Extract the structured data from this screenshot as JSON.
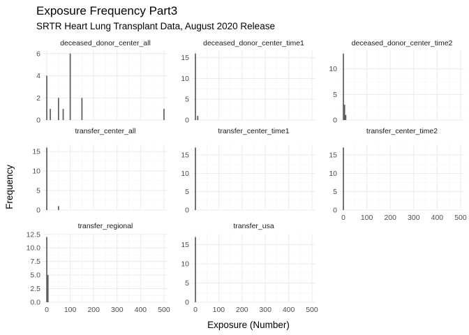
{
  "title": "Exposure Frequency Part3",
  "subtitle": "SRTR Heart Lung Transplant Data, August 2020 Release",
  "chart_data": {
    "type": "bar",
    "xlabel": "Exposure (Number)",
    "ylabel": "Frequency",
    "xlim": [
      -15,
      515
    ],
    "x_ticks": [
      0,
      100,
      200,
      300,
      400,
      500
    ],
    "bin_width": 5,
    "grid": true,
    "facets": [
      {
        "name": "deceased_donor_center_all",
        "ylim": [
          0,
          6.3
        ],
        "y_ticks": [
          0,
          2,
          4,
          6
        ],
        "bars": [
          {
            "x": 0,
            "y": 4
          },
          {
            "x": 15,
            "y": 1
          },
          {
            "x": 50,
            "y": 2
          },
          {
            "x": 70,
            "y": 1
          },
          {
            "x": 100,
            "y": 6
          },
          {
            "x": 150,
            "y": 2
          },
          {
            "x": 500,
            "y": 1
          }
        ]
      },
      {
        "name": "deceased_donor_center_time1",
        "ylim": [
          0,
          16.8
        ],
        "y_ticks": [
          0,
          5,
          10,
          15
        ],
        "bars": [
          {
            "x": 0,
            "y": 16
          },
          {
            "x": 10,
            "y": 1
          }
        ]
      },
      {
        "name": "deceased_donor_center_time2",
        "ylim": [
          0,
          13.65
        ],
        "y_ticks": [
          0,
          5,
          10
        ],
        "bars": [
          {
            "x": 0,
            "y": 13
          },
          {
            "x": 5,
            "y": 3
          },
          {
            "x": 10,
            "y": 1
          }
        ]
      },
      {
        "name": "transfer_center_all",
        "ylim": [
          0,
          16.8
        ],
        "y_ticks": [
          0,
          5,
          10,
          15
        ],
        "bars": [
          {
            "x": 0,
            "y": 16
          },
          {
            "x": 50,
            "y": 1
          }
        ]
      },
      {
        "name": "transfer_center_time1",
        "ylim": [
          0,
          17.85
        ],
        "y_ticks": [
          0,
          5,
          10,
          15
        ],
        "bars": [
          {
            "x": 0,
            "y": 17
          }
        ]
      },
      {
        "name": "transfer_center_time2",
        "ylim": [
          0,
          17.85
        ],
        "y_ticks": [
          0,
          5,
          10,
          15
        ],
        "bars": [
          {
            "x": 0,
            "y": 17
          }
        ]
      },
      {
        "name": "transfer_regional",
        "ylim": [
          0,
          12.6
        ],
        "y_ticks": [
          0.0,
          2.5,
          5.0,
          7.5,
          10.0,
          12.5
        ],
        "y_tick_labels": [
          "0.0",
          "2.5",
          "5.0",
          "7.5",
          "10.0",
          "12.5"
        ],
        "bars": [
          {
            "x": 0,
            "y": 12
          },
          {
            "x": 5,
            "y": 5
          }
        ]
      },
      {
        "name": "transfer_usa",
        "ylim": [
          0,
          17.85
        ],
        "y_ticks": [
          0,
          5,
          10,
          15
        ],
        "bars": [
          {
            "x": 0,
            "y": 17
          }
        ]
      }
    ]
  }
}
